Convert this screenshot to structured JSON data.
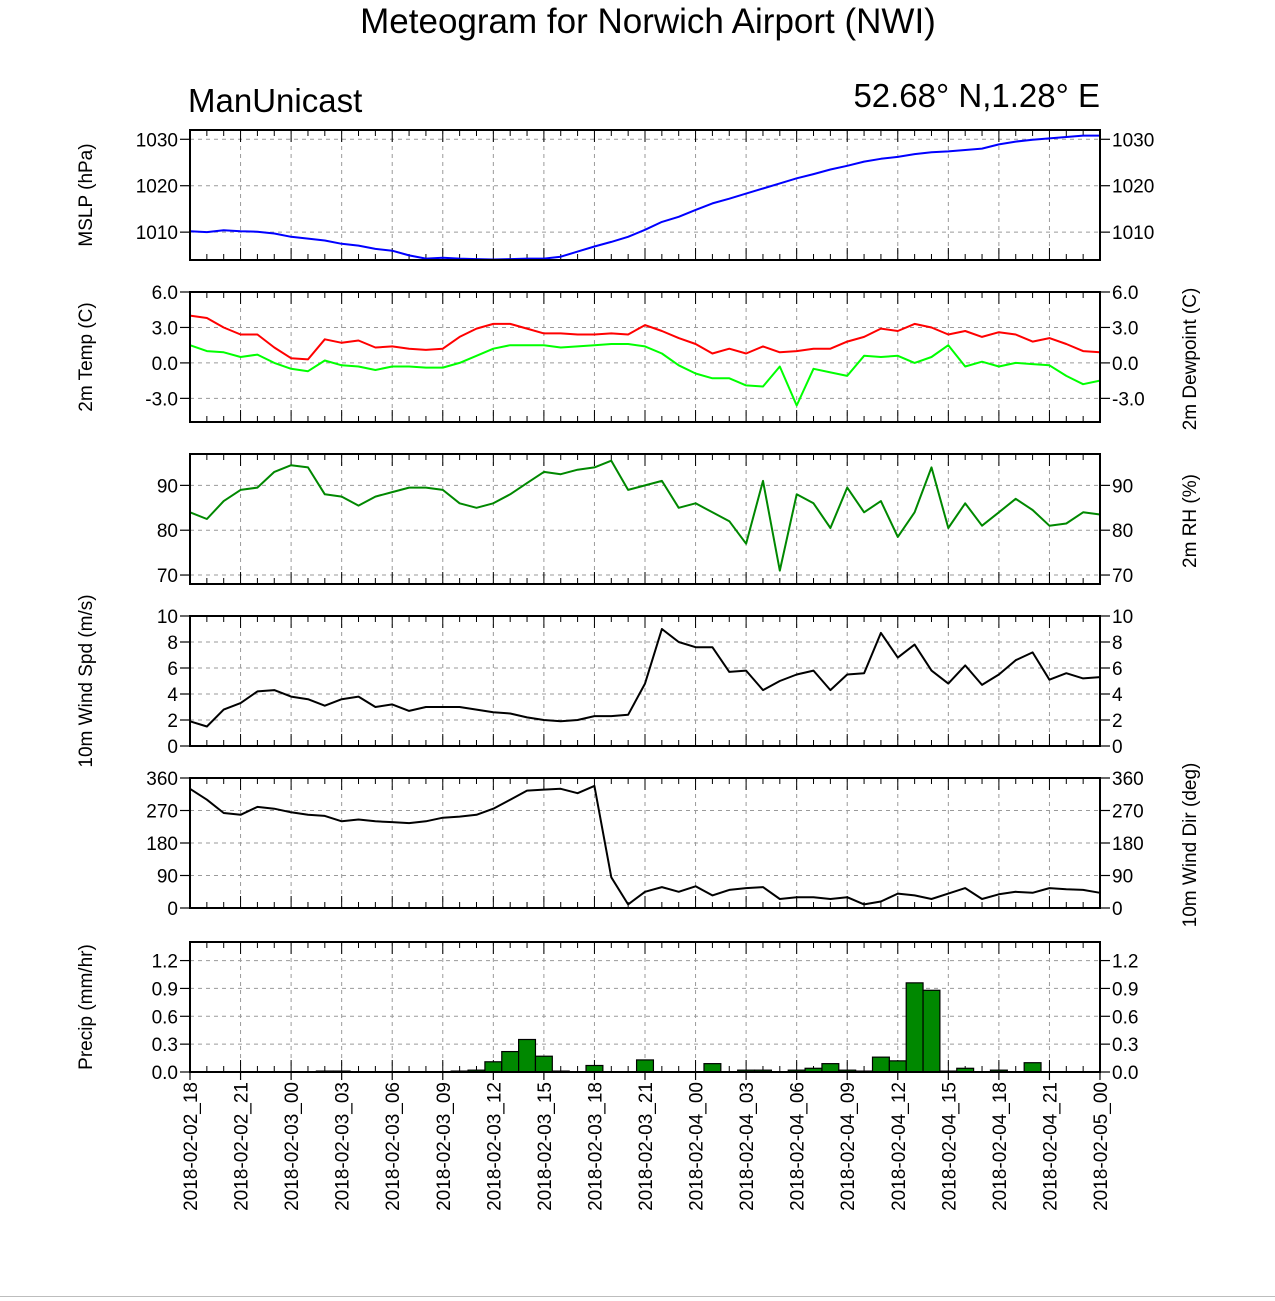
{
  "header": {
    "title": "Meteogram for Norwich Airport (NWI)",
    "source": "ManUnicast",
    "location": "52.68° N,1.28° E"
  },
  "time_labels": [
    "2018-02-02_18",
    "2018-02-02_21",
    "2018-02-03_00",
    "2018-02-03_03",
    "2018-02-03_06",
    "2018-02-03_09",
    "2018-02-03_12",
    "2018-02-03_15",
    "2018-02-03_18",
    "2018-02-03_21",
    "2018-02-04_00",
    "2018-02-04_03",
    "2018-02-04_06",
    "2018-02-04_09",
    "2018-02-04_12",
    "2018-02-04_15",
    "2018-02-04_18",
    "2018-02-04_21",
    "2018-02-05_00"
  ],
  "chart_data": [
    {
      "type": "line",
      "panel": "mslp",
      "ylabel_left": "MSLP (hPa)",
      "ylabel_right": "",
      "ylim": [
        1004,
        1032
      ],
      "yticks": [
        1010,
        1020,
        1030
      ],
      "tick_labels": [
        "1010",
        "1020",
        "1030"
      ],
      "x_unit": "hours since 2018-02-02_18",
      "xlim": [
        0,
        54
      ],
      "grid": true,
      "series": [
        {
          "color": "#0000ff",
          "x": [
            0,
            1,
            2,
            3,
            4,
            5,
            6,
            7,
            8,
            9,
            10,
            11,
            12,
            13,
            14,
            15,
            16,
            17,
            18,
            19,
            20,
            21,
            22,
            23,
            24,
            25,
            26,
            27,
            28,
            29,
            30,
            31,
            32,
            33,
            34,
            35,
            36,
            37,
            38,
            39,
            40,
            41,
            42,
            43,
            44,
            45,
            46,
            47,
            48,
            49,
            50,
            51,
            52,
            53,
            54
          ],
          "values": [
            1010.2,
            1010.0,
            1010.4,
            1010.2,
            1010.1,
            1009.7,
            1009.0,
            1008.6,
            1008.2,
            1007.5,
            1007.1,
            1006.4,
            1006.0,
            1005.0,
            1004.3,
            1004.5,
            1004.3,
            1004.2,
            1004.1,
            1004.2,
            1004.3,
            1004.3,
            1004.7,
            1005.8,
            1006.9,
            1007.9,
            1009.0,
            1010.5,
            1012.2,
            1013.3,
            1014.8,
            1016.2,
            1017.2,
            1018.3,
            1019.4,
            1020.5,
            1021.6,
            1022.5,
            1023.5,
            1024.3,
            1025.2,
            1025.8,
            1026.2,
            1026.8,
            1027.2,
            1027.4,
            1027.7,
            1028.0,
            1028.9,
            1029.5,
            1029.9,
            1030.2,
            1030.5,
            1030.8,
            1030.8
          ]
        }
      ]
    },
    {
      "type": "line",
      "panel": "temp",
      "ylabel_left": "2m Temp (C)",
      "ylabel_right": "2m Dewpoint (C)",
      "ylim": [
        -5,
        6.0
      ],
      "yticks": [
        -3.0,
        0.0,
        3.0,
        6.0
      ],
      "tick_labels": [
        "-3.0",
        "0.0",
        "3.0",
        "6.0"
      ],
      "x_unit": "hours since 2018-02-02_18",
      "xlim": [
        0,
        54
      ],
      "grid": true,
      "series": [
        {
          "color": "#ff0000",
          "x": [
            0,
            1,
            2,
            3,
            4,
            5,
            6,
            7,
            8,
            9,
            10,
            11,
            12,
            13,
            14,
            15,
            16,
            17,
            18,
            19,
            20,
            21,
            22,
            23,
            24,
            25,
            26,
            27,
            28,
            29,
            30,
            31,
            32,
            33,
            34,
            35,
            36,
            37,
            38,
            39,
            40,
            41,
            42,
            43,
            44,
            45,
            46,
            47,
            48,
            49,
            50,
            51,
            52,
            53,
            54
          ],
          "values": [
            4.0,
            3.8,
            3.0,
            2.4,
            2.4,
            1.3,
            0.4,
            0.3,
            2.0,
            1.7,
            1.9,
            1.3,
            1.4,
            1.2,
            1.1,
            1.2,
            2.2,
            2.9,
            3.3,
            3.3,
            2.9,
            2.5,
            2.5,
            2.4,
            2.4,
            2.5,
            2.4,
            3.2,
            2.7,
            2.1,
            1.6,
            0.8,
            1.2,
            0.8,
            1.4,
            0.9,
            1.0,
            1.2,
            1.2,
            1.8,
            2.2,
            2.9,
            2.7,
            3.3,
            3.0,
            2.4,
            2.7,
            2.2,
            2.6,
            2.4,
            1.8,
            2.1,
            1.6,
            1.0,
            0.9
          ]
        },
        {
          "color": "#00ff00",
          "x": [
            0,
            1,
            2,
            3,
            4,
            5,
            6,
            7,
            8,
            9,
            10,
            11,
            12,
            13,
            14,
            15,
            16,
            17,
            18,
            19,
            20,
            21,
            22,
            23,
            24,
            25,
            26,
            27,
            28,
            29,
            30,
            31,
            32,
            33,
            34,
            35,
            36,
            37,
            38,
            39,
            40,
            41,
            42,
            43,
            44,
            45,
            46,
            47,
            48,
            49,
            50,
            51,
            52,
            53,
            54
          ],
          "values": [
            1.5,
            1.0,
            0.9,
            0.5,
            0.7,
            0.0,
            -0.5,
            -0.7,
            0.2,
            -0.2,
            -0.3,
            -0.6,
            -0.3,
            -0.3,
            -0.4,
            -0.4,
            0.0,
            0.6,
            1.2,
            1.5,
            1.5,
            1.5,
            1.3,
            1.4,
            1.5,
            1.6,
            1.6,
            1.4,
            0.8,
            -0.2,
            -0.9,
            -1.3,
            -1.3,
            -1.9,
            -2.0,
            -0.3,
            -3.6,
            -0.5,
            -0.8,
            -1.1,
            0.6,
            0.5,
            0.6,
            0.0,
            0.5,
            1.5,
            -0.3,
            0.1,
            -0.3,
            0.0,
            -0.1,
            -0.2,
            -1.1,
            -1.8,
            -1.5
          ]
        }
      ]
    },
    {
      "type": "line",
      "panel": "rh",
      "ylabel_left": "",
      "ylabel_right": "2m RH (%)",
      "ylim": [
        68,
        97
      ],
      "yticks": [
        70,
        80,
        90
      ],
      "tick_labels": [
        "70",
        "80",
        "90"
      ],
      "x_unit": "hours since 2018-02-02_18",
      "xlim": [
        0,
        54
      ],
      "grid": true,
      "series": [
        {
          "color": "#008800",
          "x": [
            0,
            1,
            2,
            3,
            4,
            5,
            6,
            7,
            8,
            9,
            10,
            11,
            12,
            13,
            14,
            15,
            16,
            17,
            18,
            19,
            20,
            21,
            22,
            23,
            24,
            25,
            26,
            27,
            28,
            29,
            30,
            31,
            32,
            33,
            34,
            35,
            36,
            37,
            38,
            39,
            40,
            41,
            42,
            43,
            44,
            45,
            46,
            47,
            48,
            49,
            50,
            51,
            52,
            53,
            54
          ],
          "values": [
            84,
            82.5,
            86.5,
            89,
            89.5,
            93,
            94.5,
            94,
            88,
            87.5,
            85.5,
            87.5,
            88.5,
            89.5,
            89.5,
            89,
            86,
            85,
            86,
            88,
            90.5,
            93,
            92.5,
            93.5,
            94,
            95.5,
            89,
            90,
            91,
            85,
            86,
            84,
            82,
            77,
            91,
            71,
            88,
            86,
            80.5,
            89.5,
            84,
            86.5,
            78.5,
            84,
            94,
            80.5,
            86,
            81,
            84,
            87,
            84.5,
            81,
            81.5,
            84,
            83.5
          ]
        }
      ]
    },
    {
      "type": "line",
      "panel": "wind_speed",
      "ylabel_left": "10m Wind Spd (m/s)",
      "ylabel_right": "",
      "ylim": [
        0,
        10
      ],
      "yticks": [
        0,
        2,
        4,
        6,
        8,
        10
      ],
      "tick_labels": [
        "0",
        "2",
        "4",
        "6",
        "8",
        "10"
      ],
      "x_unit": "hours since 2018-02-02_18",
      "xlim": [
        0,
        54
      ],
      "grid": true,
      "series": [
        {
          "color": "#000000",
          "x": [
            0,
            1,
            2,
            3,
            4,
            5,
            6,
            7,
            8,
            9,
            10,
            11,
            12,
            13,
            14,
            15,
            16,
            17,
            18,
            19,
            20,
            21,
            22,
            23,
            24,
            25,
            26,
            27,
            28,
            29,
            30,
            31,
            32,
            33,
            34,
            35,
            36,
            37,
            38,
            39,
            40,
            41,
            42,
            43,
            44,
            45,
            46,
            47,
            48,
            49,
            50,
            51,
            52,
            53,
            54
          ],
          "values": [
            1.9,
            1.5,
            2.8,
            3.3,
            4.2,
            4.3,
            3.8,
            3.6,
            3.1,
            3.6,
            3.8,
            3.0,
            3.2,
            2.7,
            3.0,
            3.0,
            3.0,
            2.8,
            2.6,
            2.5,
            2.2,
            2.0,
            1.9,
            2.0,
            2.3,
            2.3,
            2.4,
            4.8,
            9.0,
            8.0,
            7.6,
            7.6,
            5.7,
            5.8,
            4.3,
            5.0,
            5.5,
            5.8,
            4.3,
            5.5,
            5.6,
            8.7,
            6.8,
            7.8,
            5.8,
            4.8,
            6.2,
            4.7,
            5.5,
            6.6,
            7.2,
            5.1,
            5.6,
            5.2,
            5.3
          ]
        }
      ]
    },
    {
      "type": "line",
      "panel": "wind_dir",
      "ylabel_left": "",
      "ylabel_right": "10m Wind Dir (deg)",
      "ylim": [
        0,
        360
      ],
      "yticks": [
        0,
        90,
        180,
        270,
        360
      ],
      "tick_labels": [
        "0",
        "90",
        "180",
        "270",
        "360"
      ],
      "x_unit": "hours since 2018-02-02_18",
      "xlim": [
        0,
        54
      ],
      "grid": true,
      "series": [
        {
          "color": "#000000",
          "x": [
            0,
            1,
            2,
            3,
            4,
            5,
            6,
            7,
            8,
            9,
            10,
            11,
            12,
            13,
            14,
            15,
            16,
            17,
            18,
            19,
            20,
            21,
            22,
            23,
            24,
            25,
            26,
            27,
            28,
            29,
            30,
            31,
            32,
            33,
            34,
            35,
            36,
            37,
            38,
            39,
            40,
            41,
            42,
            43,
            44,
            45,
            46,
            47,
            48,
            49,
            50,
            51,
            52,
            53,
            54
          ],
          "values": [
            330,
            300,
            263,
            258,
            280,
            275,
            265,
            258,
            255,
            240,
            245,
            240,
            238,
            235,
            240,
            250,
            253,
            258,
            275,
            300,
            325,
            328,
            330,
            318,
            338,
            85,
            10,
            45,
            58,
            45,
            60,
            35,
            50,
            55,
            58,
            25,
            30,
            30,
            25,
            30,
            10,
            18,
            40,
            35,
            25,
            40,
            55,
            25,
            38,
            45,
            42,
            55,
            52,
            50,
            42
          ]
        }
      ]
    },
    {
      "type": "bar",
      "panel": "precip",
      "ylabel_left": "Precip (mm/hr)",
      "ylabel_right": "",
      "ylim": [
        0,
        1.4
      ],
      "yticks": [
        0.0,
        0.3,
        0.6,
        0.9,
        1.2
      ],
      "tick_labels": [
        "0.0",
        "0.3",
        "0.6",
        "0.9",
        "1.2"
      ],
      "x_unit": "hours since 2018-02-02_18",
      "xlim": [
        0,
        54
      ],
      "grid": true,
      "color": "#008800",
      "x": [
        8,
        9,
        16,
        17,
        18,
        19,
        20,
        21,
        22,
        24,
        27,
        31,
        33,
        34,
        36,
        37,
        38,
        39,
        40,
        41,
        42,
        43,
        44,
        45,
        46,
        48,
        50
      ],
      "values": [
        0.01,
        0.01,
        0.01,
        0.02,
        0.11,
        0.22,
        0.35,
        0.17,
        0.01,
        0.07,
        0.13,
        0.09,
        0.02,
        0.02,
        0.02,
        0.04,
        0.09,
        0.02,
        0.01,
        0.16,
        0.12,
        0.96,
        0.88,
        0.01,
        0.04,
        0.02,
        0.1
      ]
    }
  ]
}
